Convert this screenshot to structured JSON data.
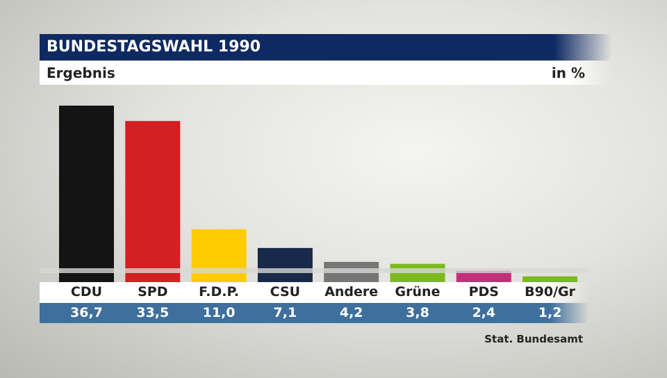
{
  "header": {
    "title": "BUNDESTAGSWAHL 1990",
    "subtitle": "Ergebnis",
    "unit": "in %"
  },
  "source": "Stat. Bundesamt",
  "colors": {
    "title_bg": "#0f2a63",
    "value_bg": "#3f6f9c"
  },
  "chart_data": {
    "type": "bar",
    "title": "BUNDESTAGSWAHL 1990",
    "subtitle": "Ergebnis",
    "ylabel": "in %",
    "categories": [
      "CDU",
      "SPD",
      "F.D.P.",
      "CSU",
      "Andere",
      "Grüne",
      "PDS",
      "B90/Gr"
    ],
    "values": [
      36.7,
      33.5,
      11.0,
      7.1,
      4.2,
      3.8,
      2.4,
      1.2
    ],
    "value_labels": [
      "36,7",
      "33,5",
      "11,0",
      "7,1",
      "4,2",
      "3,8",
      "2,4",
      "1,2"
    ],
    "colors": [
      "#141414",
      "#d42020",
      "#ffcc00",
      "#18294a",
      "#767676",
      "#7aba1c",
      "#c22f7a",
      "#7aba1c"
    ],
    "ylim": [
      0,
      36.7
    ],
    "grid": false,
    "legend": "none"
  }
}
